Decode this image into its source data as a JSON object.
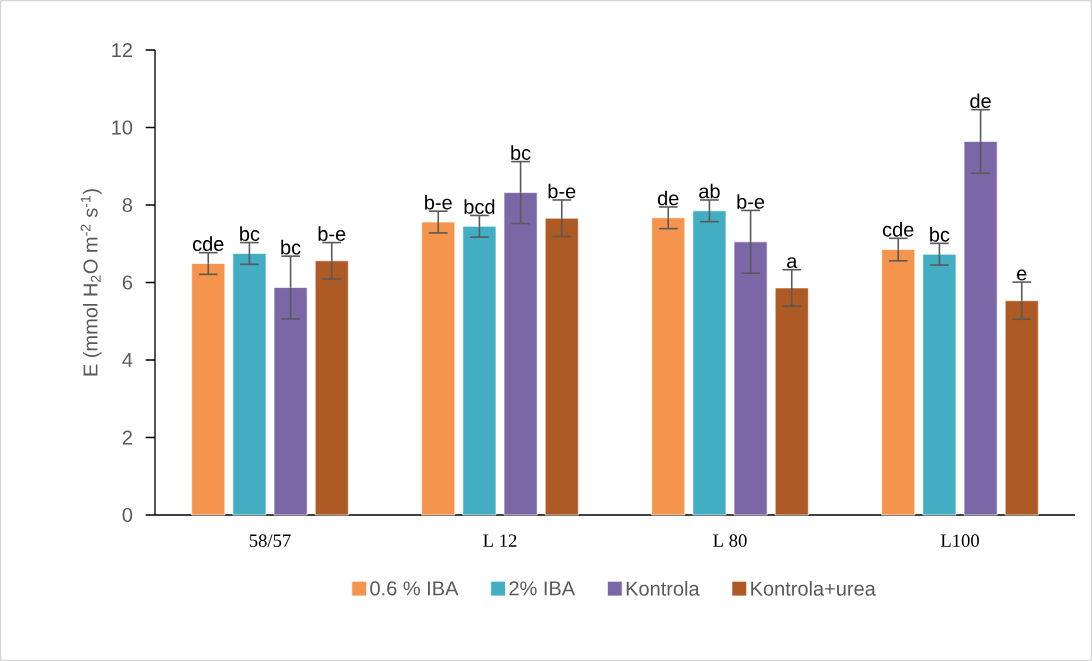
{
  "chart_data": {
    "type": "bar",
    "ylabel": "E (mmol H$_{2}$O m$^{-2}$ s$^{-1}$)",
    "categories": [
      "58/57",
      "L 12",
      "L 80",
      "L100"
    ],
    "ylim": [
      0,
      12
    ],
    "yticks": [
      0,
      2,
      4,
      6,
      8,
      10,
      12
    ],
    "legend": "bottom",
    "series": [
      {
        "name": "0.6 % IBA",
        "color": "#f5954d",
        "values": [
          6.49,
          7.56,
          7.67,
          6.85
        ],
        "errors": [
          0.28,
          0.28,
          0.28,
          0.29
        ],
        "value_labels": [
          "cde",
          "b-e",
          "de",
          "cde"
        ]
      },
      {
        "name": "2% IBA",
        "color": "#43adc3",
        "values": [
          6.75,
          7.45,
          7.85,
          6.73
        ],
        "errors": [
          0.28,
          0.28,
          0.28,
          0.28
        ],
        "value_labels": [
          "bc",
          "bcd",
          "ab",
          "bc"
        ]
      },
      {
        "name": "Kontrola",
        "color": "#7b66a6",
        "values": [
          5.87,
          8.32,
          7.05,
          9.64
        ],
        "errors": [
          0.81,
          0.8,
          0.81,
          0.82
        ],
        "value_labels": [
          "bc",
          "bc",
          "b-e",
          "de"
        ]
      },
      {
        "name": "Kontrola+urea",
        "color": "#ae5a25",
        "values": [
          6.56,
          7.66,
          5.86,
          5.53
        ],
        "errors": [
          0.47,
          0.47,
          0.47,
          0.48
        ],
        "value_labels": [
          "b-e",
          "b-e",
          "a",
          "e"
        ]
      }
    ]
  }
}
